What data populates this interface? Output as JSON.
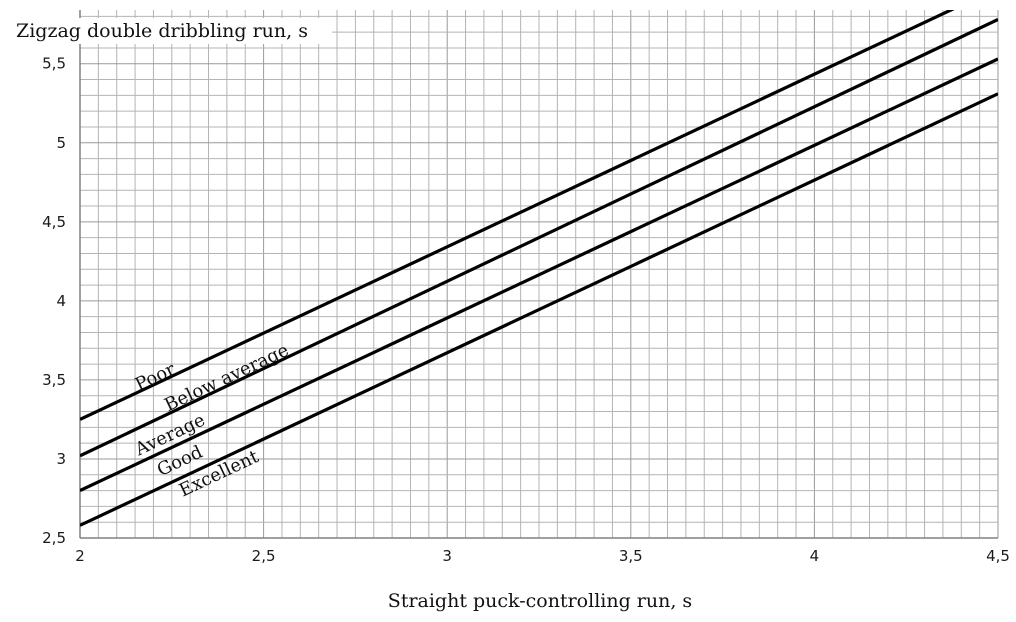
{
  "chart_data": {
    "type": "line",
    "xlabel": "Straight puck-controlling run, s",
    "ylabel": "Zigzag double dribbling run, s",
    "xlim": [
      2,
      4.5
    ],
    "ylim": [
      2.5,
      5.5
    ],
    "x_ticks": [
      "2",
      "2,5",
      "3",
      "3,5",
      "4",
      "4,5"
    ],
    "y_ticks": [
      "2,5",
      "3",
      "3,5",
      "4",
      "4,5",
      "5",
      "5,5"
    ],
    "grid": true,
    "x": [
      2,
      4.5
    ],
    "series": [
      {
        "values": [
          3.25,
          5.98
        ]
      },
      {
        "values": [
          3.02,
          5.78
        ]
      },
      {
        "values": [
          2.8,
          5.53
        ]
      },
      {
        "values": [
          2.58,
          5.31
        ]
      }
    ],
    "zone_labels": [
      {
        "text": "Poor",
        "x": 2.16,
        "y": 3.43
      },
      {
        "text": "Below average",
        "x": 2.24,
        "y": 3.3
      },
      {
        "text": "Average",
        "x": 2.16,
        "y": 3.02
      },
      {
        "text": "Good",
        "x": 2.22,
        "y": 2.89
      },
      {
        "text": "Excellent",
        "x": 2.28,
        "y": 2.76
      }
    ]
  }
}
